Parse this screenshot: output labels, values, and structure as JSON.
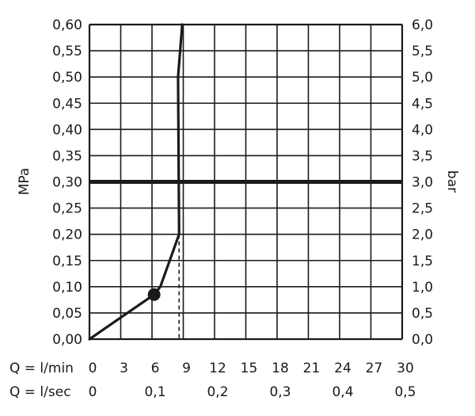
{
  "chart_data": {
    "type": "line",
    "title": "",
    "ylabel_left": "MPa",
    "ylabel_right": "bar",
    "ylim": [
      0,
      0.6
    ],
    "xlim_l_min": [
      0,
      30
    ],
    "grid": true,
    "left_ticks": [
      "0,00",
      "0,05",
      "0,10",
      "0,15",
      "0,20",
      "0,25",
      "0,30",
      "0,35",
      "0,40",
      "0,45",
      "0,50",
      "0,55",
      "0,60"
    ],
    "right_ticks": [
      "0,0",
      "0,5",
      "1,0",
      "1,5",
      "2,0",
      "2,5",
      "3,0",
      "3,5",
      "4,0",
      "4,5",
      "5,0",
      "5,5",
      "6,0"
    ],
    "x_axis_rows": [
      {
        "label": "Q = l/min",
        "ticks": [
          "0",
          "3",
          "6",
          "9",
          "12",
          "15",
          "18",
          "21",
          "24",
          "27",
          "30"
        ],
        "positions": [
          0,
          3,
          6,
          9,
          12,
          15,
          18,
          21,
          24,
          27,
          30
        ]
      },
      {
        "label": "Q = l/sec",
        "ticks": [
          "0",
          "0,1",
          "0,2",
          "0,3",
          "0,4",
          "0,5"
        ],
        "positions": [
          0,
          6,
          12,
          18,
          24,
          30
        ]
      }
    ],
    "series": [
      {
        "x": [
          0,
          6.2,
          6.8,
          8.6,
          8.5,
          8.9
        ],
        "y": [
          0,
          0.085,
          0.1,
          0.2,
          0.5,
          0.6
        ]
      }
    ],
    "reference_line_y": 0.3,
    "marker_point": {
      "x": 6.2,
      "y": 0.085
    },
    "dashed_drop_x": 8.6,
    "dashed_drop_from_y": 0.2
  }
}
